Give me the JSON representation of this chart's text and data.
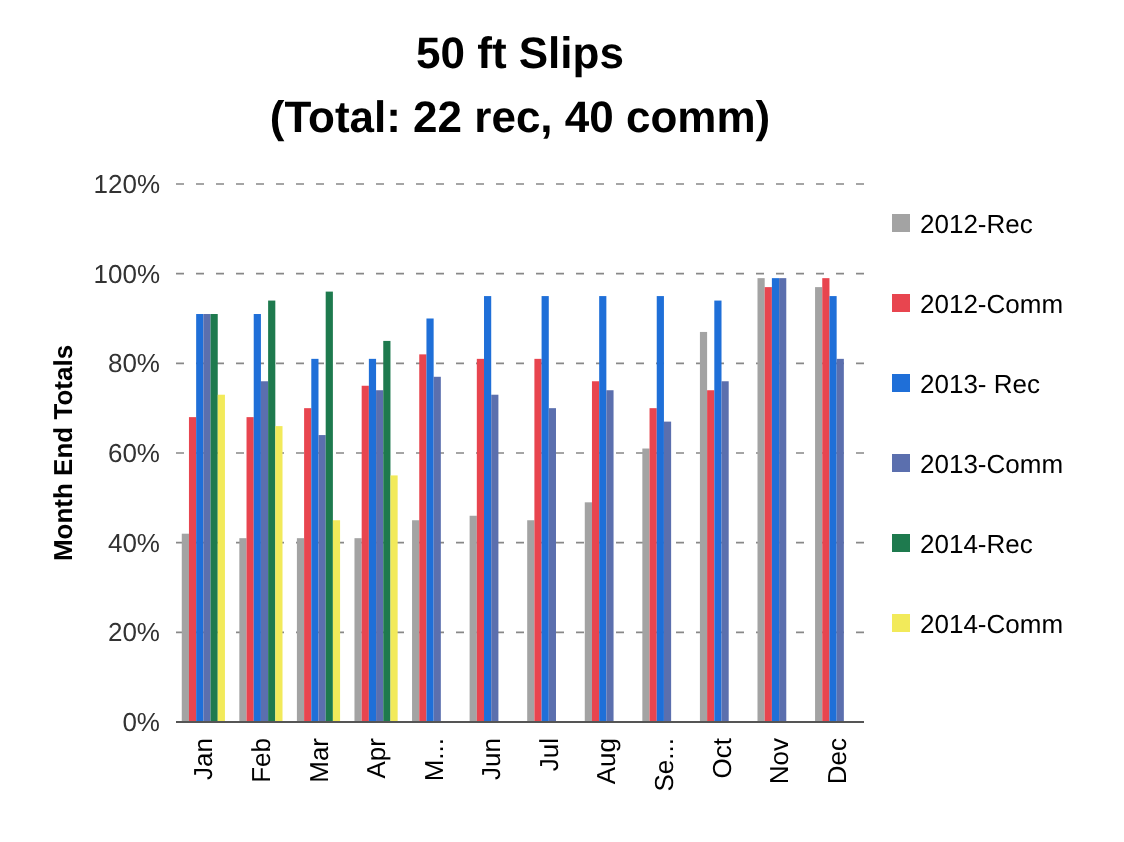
{
  "chart_data": {
    "type": "bar",
    "title": "50 ft Slips",
    "subtitle": "(Total: 22 rec, 40 comm)",
    "ylabel": "Month End Totals",
    "categories": [
      "Jan",
      "Feb",
      "Mar",
      "Apr",
      "M...",
      "Jun",
      "Jul",
      "Aug",
      "Se...",
      "Oct",
      "Nov",
      "Dec"
    ],
    "series": [
      {
        "name": "2012-Rec",
        "color": "#a3a3a3",
        "values": [
          42,
          41,
          41,
          41,
          45,
          46,
          45,
          49,
          61,
          87,
          99,
          97
        ]
      },
      {
        "name": "2012-Comm",
        "color": "#e8454f",
        "values": [
          68,
          68,
          70,
          75,
          82,
          81,
          81,
          76,
          70,
          74,
          97,
          99
        ]
      },
      {
        "name": "2013- Rec",
        "color": "#1f6fd8",
        "values": [
          91,
          91,
          81,
          81,
          90,
          95,
          95,
          95,
          95,
          94,
          99,
          95
        ]
      },
      {
        "name": "2013-Comm",
        "color": "#5b6fae",
        "values": [
          91,
          76,
          64,
          74,
          77,
          73,
          70,
          74,
          67,
          76,
          99,
          81
        ]
      },
      {
        "name": "2014-Rec",
        "color": "#1e7a4e",
        "values": [
          91,
          94,
          96,
          85,
          null,
          null,
          null,
          null,
          null,
          null,
          null,
          null
        ]
      },
      {
        "name": "2014-Comm",
        "color": "#f2ea5a",
        "values": [
          73,
          66,
          45,
          55,
          null,
          null,
          null,
          null,
          null,
          null,
          null,
          null
        ]
      }
    ],
    "ylim": [
      0,
      120
    ],
    "yticks": [
      {
        "value": 0,
        "label": "0%"
      },
      {
        "value": 20,
        "label": "20%"
      },
      {
        "value": 40,
        "label": "40%"
      },
      {
        "value": 60,
        "label": "60%"
      },
      {
        "value": 80,
        "label": "80%"
      },
      {
        "value": 100,
        "label": "100%"
      },
      {
        "value": 120,
        "label": "120%"
      }
    ],
    "grid": "y",
    "legend": "right"
  }
}
